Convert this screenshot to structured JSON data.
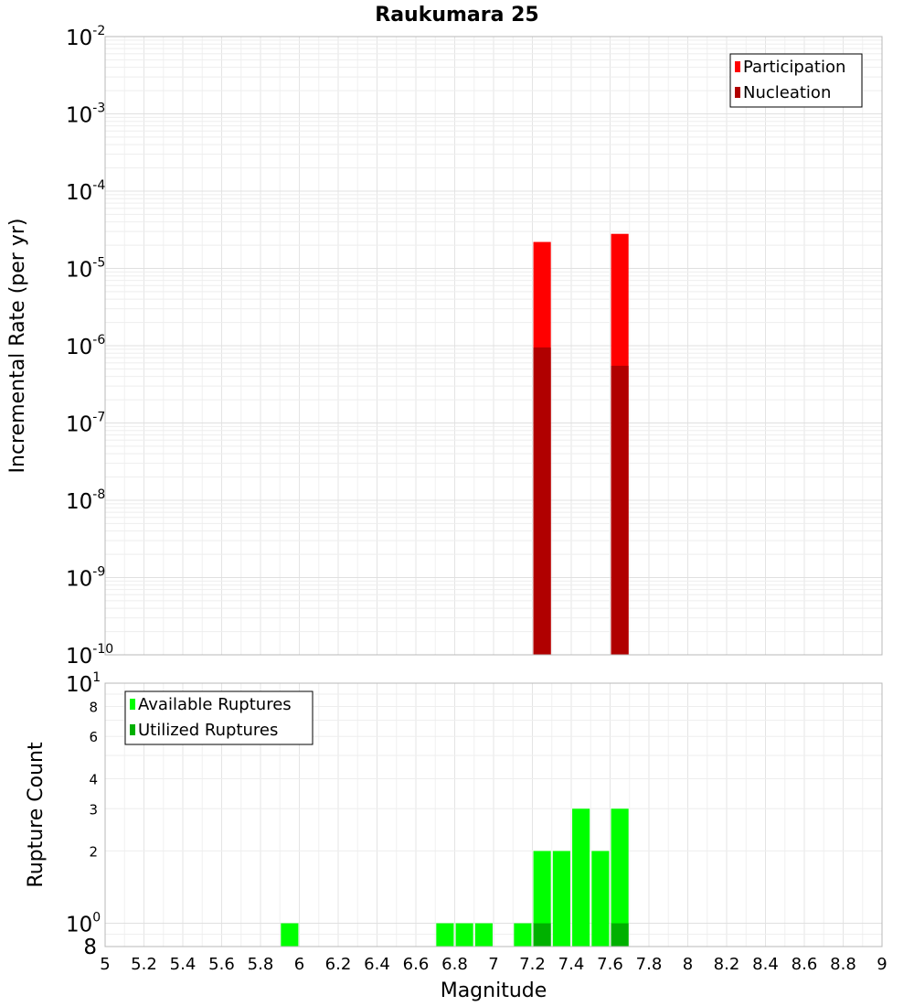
{
  "chart_data": [
    {
      "type": "bar",
      "title": "Raukumara 25",
      "ylabel": "Incremental Rate (per yr)",
      "xlabel": "",
      "yscale": "log",
      "xlim": [
        5,
        9
      ],
      "ylim": [
        1e-10,
        0.01
      ],
      "grid": true,
      "legend_position": "top-right",
      "y_ticks": [
        {
          "base": "10",
          "exp": "-2",
          "value": 0.01
        },
        {
          "base": "10",
          "exp": "-3",
          "value": 0.001
        },
        {
          "base": "10",
          "exp": "-4",
          "value": 0.0001
        },
        {
          "base": "10",
          "exp": "-5",
          "value": 1e-05
        },
        {
          "base": "10",
          "exp": "-6",
          "value": 1e-06
        },
        {
          "base": "10",
          "exp": "-7",
          "value": 1e-07
        },
        {
          "base": "10",
          "exp": "-8",
          "value": 1e-08
        },
        {
          "base": "10",
          "exp": "-9",
          "value": 1e-09
        },
        {
          "base": "10",
          "exp": "-10",
          "value": 1e-10
        }
      ],
      "bar_width": 0.09,
      "series": [
        {
          "name": "Participation",
          "color": "#ff0000",
          "points": [
            {
              "x": 7.25,
              "y": 2.2e-05
            },
            {
              "x": 7.65,
              "y": 2.8e-05
            }
          ]
        },
        {
          "name": "Nucleation",
          "color": "#b00000",
          "points": [
            {
              "x": 7.25,
              "y": 9.5e-07
            },
            {
              "x": 7.65,
              "y": 5.5e-07
            }
          ]
        }
      ]
    },
    {
      "type": "bar",
      "title": "",
      "ylabel": "Rupture Count",
      "xlabel": "Magnitude",
      "yscale": "log",
      "xlim": [
        5,
        9
      ],
      "ylim": [
        0.8,
        10
      ],
      "grid": true,
      "legend_position": "top-left",
      "x_ticks": [
        "5",
        "5.2",
        "5.4",
        "5.6",
        "5.8",
        "6",
        "6.2",
        "6.4",
        "6.6",
        "6.8",
        "7",
        "7.2",
        "7.4",
        "7.6",
        "7.8",
        "8",
        "8.2",
        "8.4",
        "8.6",
        "8.8",
        "9"
      ],
      "y_ticks_major": [
        {
          "base": "10",
          "exp": "1",
          "value": 10
        },
        {
          "base": "10",
          "exp": "0",
          "value": 1
        }
      ],
      "y_ticks_minor": [
        {
          "label": "8",
          "value": 8
        },
        {
          "label": "6",
          "value": 6
        },
        {
          "label": "4",
          "value": 4
        },
        {
          "label": "3",
          "value": 3
        },
        {
          "label": "2",
          "value": 2
        }
      ],
      "y_tick_bottom": {
        "label": "8",
        "value": 0.8
      },
      "bar_width": 0.09,
      "series": [
        {
          "name": "Available Ruptures",
          "color": "#00ff00",
          "points": [
            {
              "x": 5.95,
              "y": 1
            },
            {
              "x": 6.75,
              "y": 1
            },
            {
              "x": 6.85,
              "y": 1
            },
            {
              "x": 6.95,
              "y": 1
            },
            {
              "x": 7.15,
              "y": 1
            },
            {
              "x": 7.25,
              "y": 2
            },
            {
              "x": 7.35,
              "y": 2
            },
            {
              "x": 7.45,
              "y": 3
            },
            {
              "x": 7.55,
              "y": 2
            },
            {
              "x": 7.65,
              "y": 3
            }
          ]
        },
        {
          "name": "Utilized Ruptures",
          "color": "#00b000",
          "points": [
            {
              "x": 7.25,
              "y": 1
            },
            {
              "x": 7.65,
              "y": 1
            }
          ]
        }
      ]
    }
  ]
}
